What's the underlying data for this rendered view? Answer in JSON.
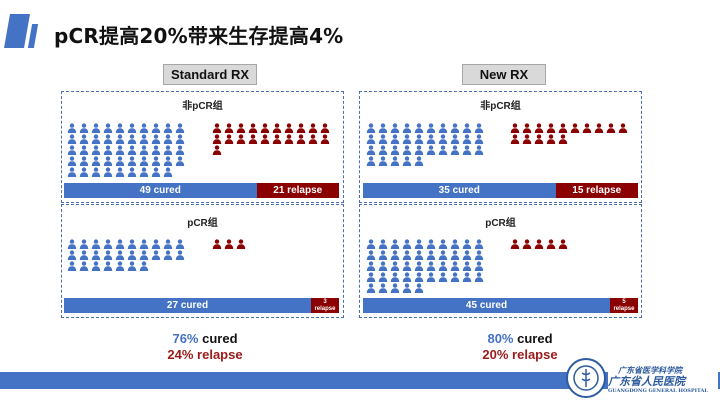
{
  "title": "pCR提高20%带来生存提高4%",
  "arms": [
    {
      "label": "Standard RX",
      "nonpcr": {
        "label": "非pCR组",
        "cured": 49,
        "relapse": 21,
        "cured_text": "49 cured",
        "relapse_text": "21 relapse"
      },
      "pcr": {
        "label": "pCR组",
        "cured": 27,
        "relapse": 3,
        "cured_text": "27 cured",
        "relapse_num": "3",
        "relapse_word": "relapse"
      },
      "summary": {
        "cured_pct": "76%",
        "cured_word": " cured",
        "relapse_pct": "24%",
        "relapse_word": " relapse"
      }
    },
    {
      "label": "New RX",
      "nonpcr": {
        "label": "非pCR组",
        "cured": 35,
        "relapse": 15,
        "cured_text": "35 cured",
        "relapse_text": "15 relapse"
      },
      "pcr": {
        "label": "pCR组",
        "cured": 45,
        "relapse": 5,
        "cured_text": "45 cured",
        "relapse_num": "5",
        "relapse_word": "relapse"
      },
      "summary": {
        "cured_pct": "80%",
        "cured_word": " cured",
        "relapse_pct": "20%",
        "relapse_word": " relapse"
      }
    }
  ],
  "colors": {
    "cured": "#4472c4",
    "relapse": "#8b0000"
  },
  "icons": {
    "person": "person-icon",
    "logo": "hospital-logo-icon"
  },
  "footer": {
    "line1": "广东省医学科学院",
    "line2": "广东省人民医院",
    "line3": "GUANGDONG GENERAL HOSPITAL"
  }
}
